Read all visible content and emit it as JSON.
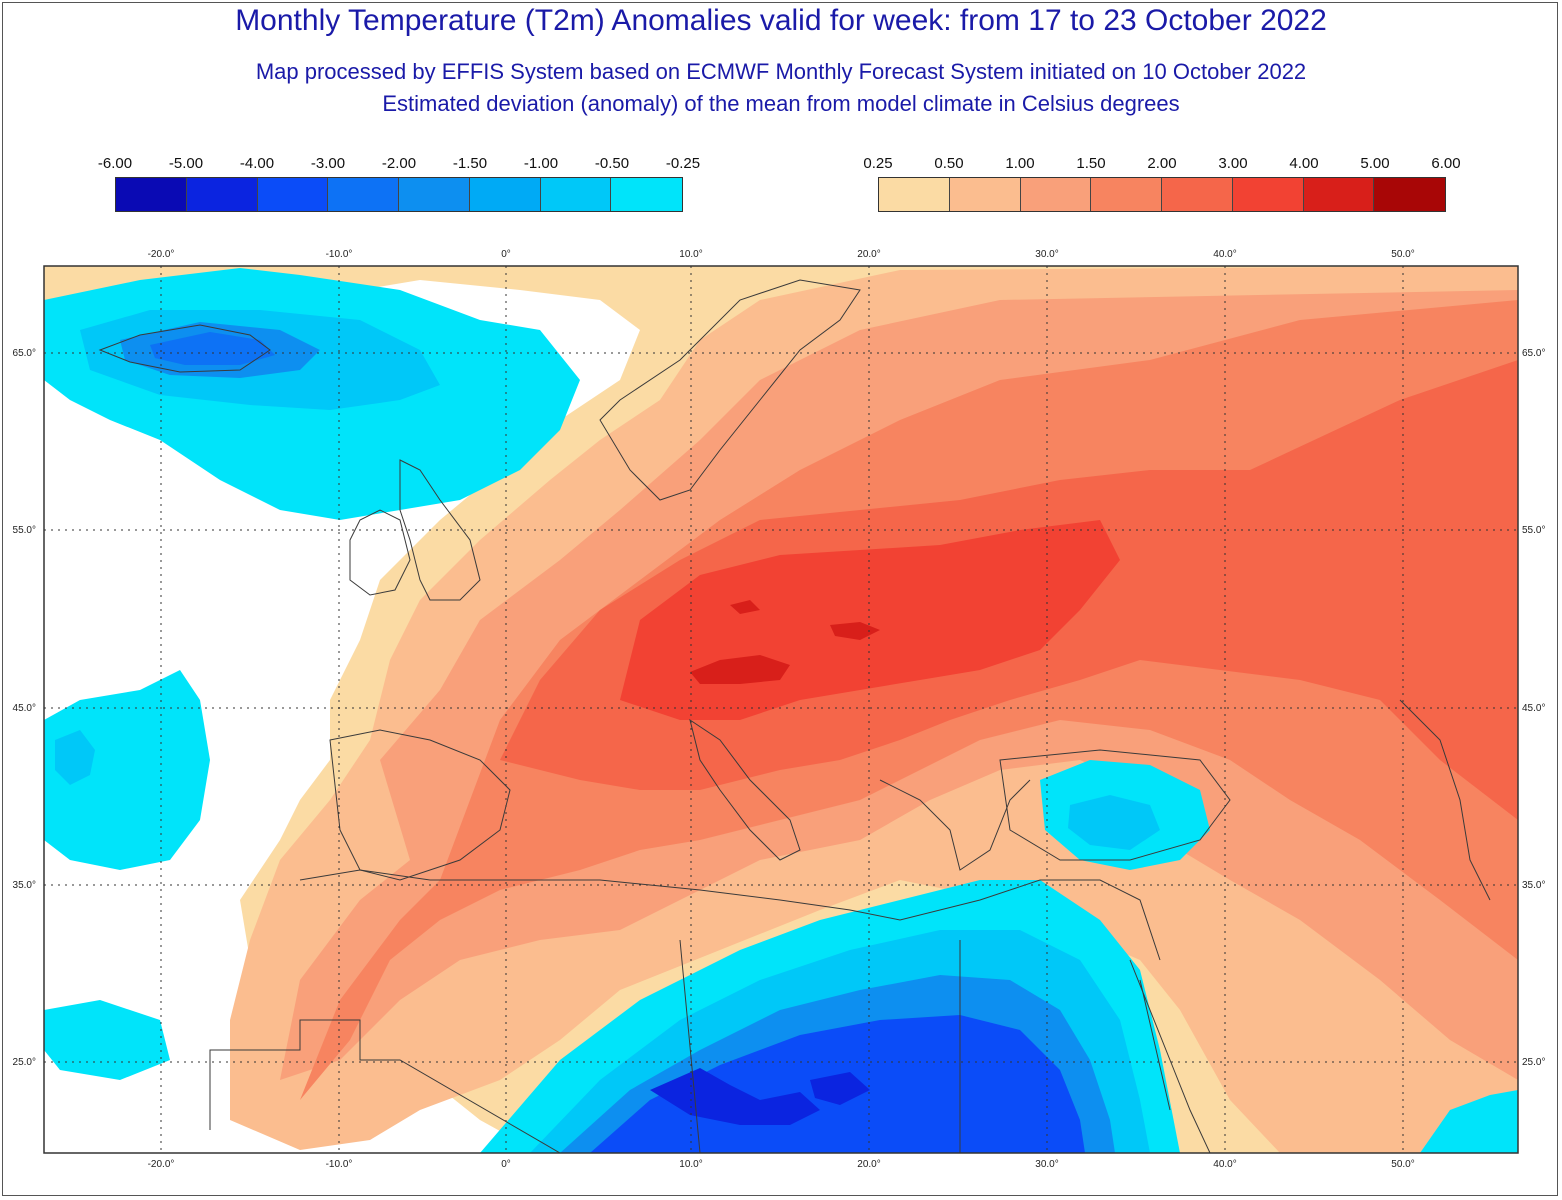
{
  "title": "Monthly Temperature (T2m) Anomalies valid for week: from 17 to 23 October 2022",
  "subtitle1": "Map processed by EFFIS System based on ECMWF Monthly Forecast System initiated on 10 October 2022",
  "subtitle2": "Estimated deviation (anomaly) of the mean from model climate in Celsius degrees",
  "legend_negative": {
    "labels": [
      "-6.00",
      "-5.00",
      "-4.00",
      "-3.00",
      "-2.00",
      "-1.50",
      "-1.00",
      "-0.50",
      "-0.25"
    ],
    "colors": [
      "#0a0ab4",
      "#0b24e0",
      "#0b4cf8",
      "#0d72f5",
      "#0d8ff0",
      "#00aaf5",
      "#00c8f8",
      "#00e4fa"
    ]
  },
  "legend_positive": {
    "labels": [
      "0.25",
      "0.50",
      "1.00",
      "1.50",
      "2.00",
      "3.00",
      "4.00",
      "5.00",
      "6.00"
    ],
    "colors": [
      "#fbdba4",
      "#fbbd8f",
      "#f9a07a",
      "#f78460",
      "#f5664a",
      "#f24233",
      "#d81f1a",
      "#a80606"
    ]
  },
  "lon_labels": [
    "-20.0°",
    "-10.0°",
    "0°",
    "10.0°",
    "20.0°",
    "30.0°",
    "40.0°",
    "50.0°"
  ],
  "lat_labels": [
    "65.0°",
    "55.0°",
    "45.0°",
    "35.0°",
    "25.0°"
  ],
  "colors": {
    "title": "#1a1aa8",
    "ocean_white": "#ffffff",
    "gridline": "#333333",
    "border": "#3a3a3a"
  }
}
